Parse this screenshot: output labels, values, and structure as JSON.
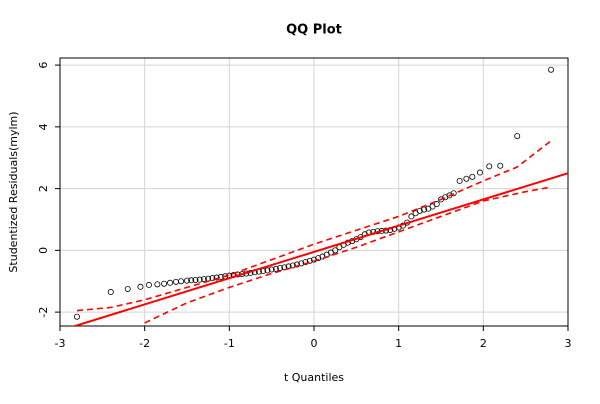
{
  "chart_data": {
    "type": "qq",
    "title": "QQ Plot",
    "x_label": "t Quantiles",
    "y_label": "Studentized Residuals(mylm)",
    "x": [
      -2.8,
      -2.4,
      -2.2,
      -2.05,
      -1.95,
      -1.85,
      -1.77,
      -1.7,
      -1.63,
      -1.57,
      -1.5,
      -1.45,
      -1.4,
      -1.35,
      -1.3,
      -1.25,
      -1.2,
      -1.15,
      -1.1,
      -1.05,
      -1.0,
      -0.95,
      -0.9,
      -0.85,
      -0.8,
      -0.75,
      -0.7,
      -0.65,
      -0.6,
      -0.55,
      -0.5,
      -0.45,
      -0.4,
      -0.35,
      -0.3,
      -0.25,
      -0.2,
      -0.15,
      -0.1,
      -0.05,
      0,
      0.05,
      0.1,
      0.15,
      0.2,
      0.25,
      0.3,
      0.35,
      0.4,
      0.45,
      0.5,
      0.55,
      0.6,
      0.65,
      0.7,
      0.75,
      0.8,
      0.85,
      0.9,
      0.95,
      1.0,
      1.05,
      1.1,
      1.15,
      1.2,
      1.25,
      1.3,
      1.35,
      1.4,
      1.45,
      1.5,
      1.55,
      1.6,
      1.65,
      1.72,
      1.8,
      1.87,
      1.96,
      2.07,
      2.2,
      2.4,
      2.8
    ],
    "values": [
      -2.15,
      -1.35,
      -1.25,
      -1.18,
      -1.12,
      -1.1,
      -1.08,
      -1.05,
      -1.02,
      -1.0,
      -0.98,
      -0.97,
      -0.96,
      -0.95,
      -0.93,
      -0.92,
      -0.9,
      -0.88,
      -0.86,
      -0.84,
      -0.82,
      -0.8,
      -0.78,
      -0.77,
      -0.75,
      -0.73,
      -0.71,
      -0.69,
      -0.67,
      -0.65,
      -0.62,
      -0.6,
      -0.57,
      -0.55,
      -0.52,
      -0.49,
      -0.46,
      -0.42,
      -0.38,
      -0.34,
      -0.3,
      -0.25,
      -0.2,
      -0.14,
      -0.07,
      0.0,
      0.1,
      0.18,
      0.25,
      0.3,
      0.36,
      0.43,
      0.52,
      0.58,
      0.6,
      0.62,
      0.63,
      0.64,
      0.66,
      0.7,
      0.74,
      0.8,
      0.9,
      1.1,
      1.2,
      1.28,
      1.32,
      1.35,
      1.42,
      1.5,
      1.65,
      1.72,
      1.78,
      1.85,
      2.25,
      2.32,
      2.38,
      2.52,
      2.72,
      2.74,
      3.7,
      5.85
    ],
    "point_color": "#000000",
    "line_color": "#ff0000",
    "reference_line": {
      "x": [
        -3,
        3
      ],
      "y": [
        -2.6,
        2.5
      ]
    },
    "envelope_upper": {
      "x": [
        -2.8,
        -2.4,
        -2,
        -1.5,
        -1,
        -0.5,
        0,
        0.5,
        1,
        1.5,
        2,
        2.4,
        2.8
      ],
      "y": [
        -1.95,
        -1.85,
        -1.6,
        -1.2,
        -0.8,
        -0.3,
        0.2,
        0.65,
        1.1,
        1.65,
        2.25,
        2.7,
        3.55
      ]
    },
    "envelope_lower": {
      "x": [
        -2,
        -1.5,
        -1,
        -0.5,
        0,
        0.5,
        1,
        1.5,
        2,
        2.5,
        2.8
      ],
      "y": [
        -2.35,
        -1.7,
        -1.2,
        -0.75,
        -0.35,
        0.1,
        0.6,
        1.1,
        1.6,
        1.9,
        2.05
      ]
    },
    "xlim": [
      -3,
      3
    ],
    "ylim": [
      -2.45,
      6.23
    ],
    "xticks": [
      -3,
      -2,
      -1,
      0,
      1,
      2,
      3
    ],
    "yticks": [
      -2,
      0,
      2,
      4,
      6
    ],
    "grid": true
  }
}
